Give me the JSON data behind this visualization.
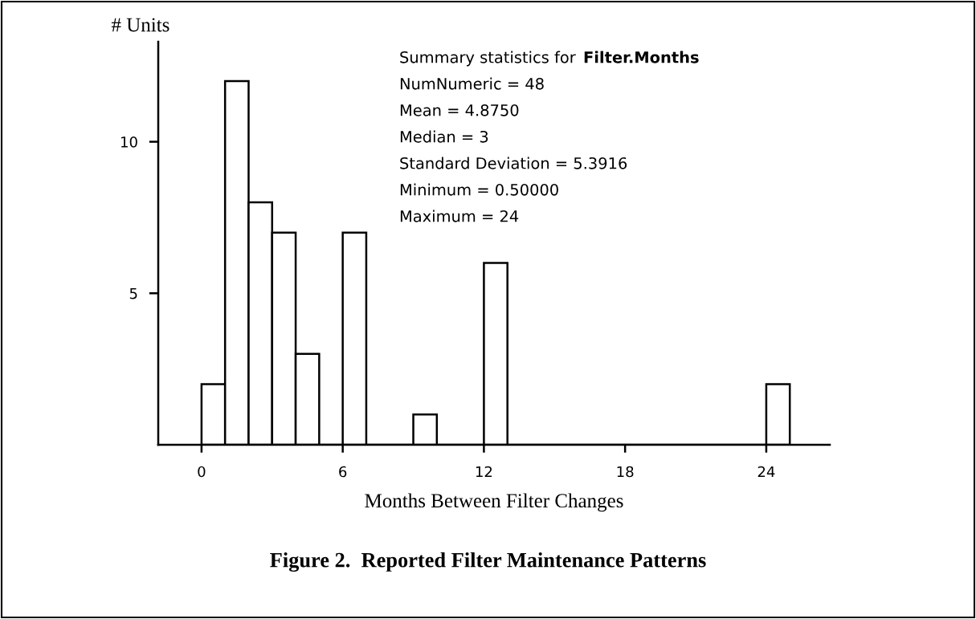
{
  "chart_data": {
    "type": "histogram",
    "title": "Figure 2.  Reported Filter Maintenance Patterns",
    "xlabel": "Months Between Filter Changes",
    "ylabel": "# Units",
    "bins": [
      0,
      1,
      2,
      3,
      4,
      5,
      6,
      7,
      8,
      9,
      10,
      11,
      12,
      13,
      14,
      15,
      16,
      17,
      18,
      19,
      20,
      21,
      22,
      23,
      24,
      25
    ],
    "values": [
      2,
      12,
      8,
      7,
      3,
      0,
      7,
      0,
      0,
      1,
      0,
      0,
      6,
      0,
      0,
      0,
      0,
      0,
      0,
      0,
      0,
      0,
      0,
      0,
      2
    ],
    "color": "#ffffff",
    "xlim": [
      -1.84,
      26.7
    ],
    "xticks": [
      0,
      6,
      12,
      18,
      24
    ],
    "ylim": [
      0,
      13.3
    ],
    "yticks": [
      {
        "value": 5,
        "label": "5"
      },
      {
        "value": 10,
        "label": "10"
      }
    ],
    "grid": false,
    "annotations": [
      "Summary statistics for",
      "Filter.Months",
      "NumNumeric = 48",
      "Mean = 4.8750",
      "Median = 3",
      "Standard Deviation = 5.3916",
      "Minimum = 0.50000",
      "Maximum = 24"
    ]
  }
}
